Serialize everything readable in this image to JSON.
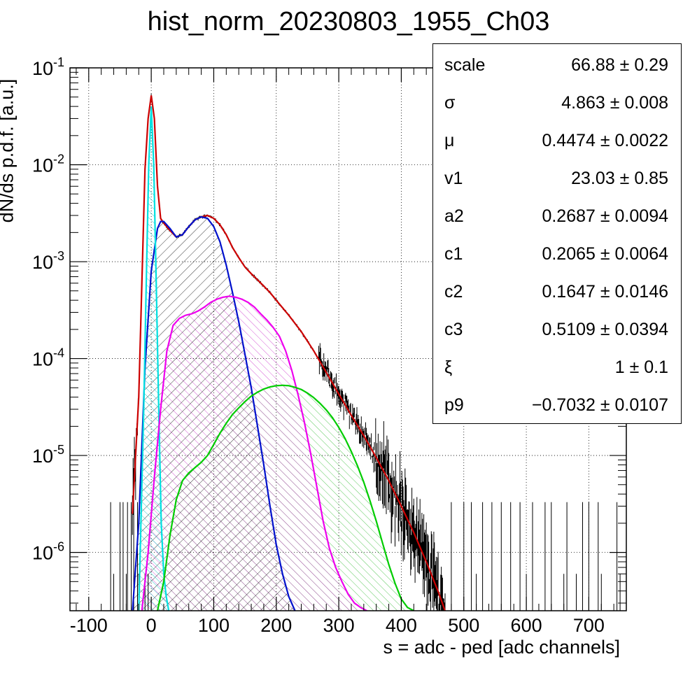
{
  "chart_data": {
    "type": "line",
    "title": "hist_norm_20230803_1955_Ch03",
    "xlabel": "s = adc - ped [adc channels]",
    "ylabel": "dN/ds p.d.f. [a.u.]",
    "xlim": [
      -130,
      760
    ],
    "ylim": [
      2.5e-07,
      0.1
    ],
    "yscale": "log",
    "grid": true,
    "x_ticks": [
      "-100",
      "0",
      "100",
      "200",
      "300",
      "400",
      "500",
      "600",
      "700"
    ],
    "y_ticks": [
      {
        "base": "10",
        "exp": "-1"
      },
      {
        "base": "10",
        "exp": "-2"
      },
      {
        "base": "10",
        "exp": "-3"
      },
      {
        "base": "10",
        "exp": "-4"
      },
      {
        "base": "10",
        "exp": "-5"
      },
      {
        "base": "10",
        "exp": "-6"
      }
    ],
    "series": [
      {
        "color": "#cc0000",
        "style": "total-fit",
        "x": [
          -30,
          -20,
          -10,
          -5,
          0,
          5,
          10,
          15,
          20,
          30,
          40,
          50,
          60,
          70,
          80,
          90,
          100,
          110,
          120,
          130,
          140,
          150,
          160,
          170,
          180,
          190,
          200,
          220,
          240,
          260,
          280,
          300,
          320,
          340,
          360,
          380,
          400,
          420,
          440,
          460,
          470
        ],
        "y": [
          2.5e-06,
          4e-05,
          0.009,
          0.03,
          0.052,
          0.03,
          0.006,
          0.0028,
          0.0025,
          0.0021,
          0.0018,
          0.0019,
          0.0023,
          0.0027,
          0.0029,
          0.003,
          0.0028,
          0.0024,
          0.0019,
          0.0014,
          0.0011,
          0.00088,
          0.00075,
          0.00065,
          0.00056,
          0.00048,
          0.0004,
          0.00028,
          0.00019,
          0.00012,
          7.2e-05,
          4.3e-05,
          2.6e-05,
          1.6e-05,
          9.5e-06,
          5.5e-06,
          3e-06,
          1.6e-06,
          8e-07,
          3.8e-07,
          2.5e-07
        ]
      },
      {
        "color": "#0011cc",
        "style": "hatched",
        "x": [
          -30,
          -20,
          -10,
          0,
          10,
          15,
          20,
          30,
          40,
          50,
          60,
          70,
          80,
          90,
          100,
          110,
          120,
          130,
          140,
          150,
          160,
          170,
          180,
          190,
          200,
          210,
          220,
          230
        ],
        "y": [
          2.5e-07,
          2e-06,
          8e-05,
          0.0008,
          0.0022,
          0.0026,
          0.0026,
          0.0022,
          0.0018,
          0.0019,
          0.0023,
          0.0027,
          0.0029,
          0.0028,
          0.0023,
          0.0016,
          0.00092,
          0.00048,
          0.00024,
          0.00011,
          5e-05,
          2e-05,
          8e-06,
          3e-06,
          1.2e-06,
          6e-07,
          3.5e-07,
          2.5e-07
        ]
      },
      {
        "color": "#00e0e0",
        "style": "hatched",
        "x": [
          -20,
          -12,
          -8,
          -4,
          0,
          4,
          8,
          12,
          16,
          20,
          24,
          28
        ],
        "y": [
          2.5e-07,
          3e-05,
          0.0006,
          0.01,
          0.04,
          0.01,
          0.0006,
          3e-05,
          2e-06,
          6e-07,
          3.5e-07,
          2.5e-07
        ]
      },
      {
        "color": "#ee00ee",
        "style": "hatched",
        "x": [
          -15,
          -5,
          5,
          15,
          25,
          35,
          45,
          55,
          65,
          75,
          85,
          95,
          105,
          115,
          125,
          135,
          145,
          155,
          165,
          175,
          185,
          195,
          205,
          215,
          225,
          235,
          245,
          255,
          265,
          275,
          285,
          295,
          305,
          315,
          325,
          335,
          345
        ],
        "y": [
          2.5e-07,
          1e-06,
          6e-06,
          3e-05,
          0.00012,
          0.00022,
          0.00026,
          0.00028,
          0.00029,
          0.00031,
          0.00034,
          0.00038,
          0.00041,
          0.00043,
          0.00044,
          0.00043,
          0.00041,
          0.00038,
          0.00034,
          0.00029,
          0.00025,
          0.00021,
          0.00017,
          0.00012,
          7.5e-05,
          4.2e-05,
          2.2e-05,
          1.05e-05,
          4.7e-06,
          2.1e-06,
          1.1e-06,
          7e-07,
          5e-07,
          3.7e-07,
          3e-07,
          2.7e-07,
          2.5e-07
        ]
      },
      {
        "color": "#00cc00",
        "style": "hatched",
        "x": [
          10,
          20,
          30,
          40,
          50,
          60,
          70,
          80,
          90,
          100,
          110,
          120,
          130,
          140,
          150,
          160,
          170,
          180,
          190,
          200,
          210,
          220,
          230,
          240,
          250,
          260,
          270,
          280,
          290,
          300,
          310,
          320,
          330,
          340,
          350,
          360,
          370,
          380,
          390,
          400,
          410,
          420
        ],
        "y": [
          2.5e-07,
          5e-07,
          1.5e-06,
          3.5e-06,
          5.5e-06,
          6.6e-06,
          7.5e-06,
          8.5e-06,
          1e-05,
          1.3e-05,
          1.7e-05,
          2.15e-05,
          2.65e-05,
          3.1e-05,
          3.6e-05,
          4.1e-05,
          4.5e-05,
          4.85e-05,
          5.1e-05,
          5.25e-05,
          5.3e-05,
          5.25e-05,
          5.05e-05,
          4.8e-05,
          4.4e-05,
          3.95e-05,
          3.45e-05,
          2.95e-05,
          2.45e-05,
          1.95e-05,
          1.5e-05,
          1.1e-05,
          7.8e-06,
          5.3e-06,
          3.4e-06,
          2.1e-06,
          1.25e-06,
          7.5e-07,
          4.8e-07,
          3.3e-07,
          2.7e-07,
          2.5e-07
        ]
      }
    ],
    "stats": [
      {
        "name": "scale",
        "value": "66.88 ± 0.29"
      },
      {
        "name": "σ",
        "value": "4.863 ± 0.008"
      },
      {
        "name": "μ",
        "value": "0.4474 ± 0.0022"
      },
      {
        "name": "v1",
        "value": "23.03 ± 0.85"
      },
      {
        "name": "a2",
        "value": "0.2687 ± 0.0094"
      },
      {
        "name": "c1",
        "value": "0.2065 ± 0.0064"
      },
      {
        "name": "c2",
        "value": "0.1647 ± 0.0146"
      },
      {
        "name": "c3",
        "value": "0.5109 ± 0.0394"
      },
      {
        "name": "ξ",
        "value": "1 ± 0.1"
      },
      {
        "name": "p9",
        "value": "−0.7032 ± 0.0107"
      }
    ]
  }
}
